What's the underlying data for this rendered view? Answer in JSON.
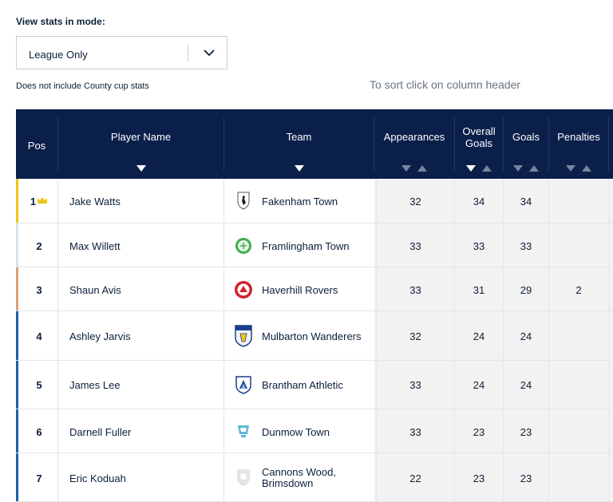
{
  "mode": {
    "label": "View stats in mode:",
    "selected": "League Only"
  },
  "note": "Does not include County cup stats",
  "sort_hint": "To sort click on column header",
  "columns": {
    "pos": "Pos",
    "player": "Player Name",
    "team": "Team",
    "appearances": "Appearances",
    "overall_goals": "Overall Goals",
    "goals": "Goals",
    "penalties": "Penalties"
  },
  "colors": {
    "header_bg": "#0b1f4b",
    "gold": "#f0c419",
    "silver": "#d6e4ee",
    "bronze": "#d9a17a",
    "blue": "#1a5fa8"
  },
  "rows": [
    {
      "pos": "1",
      "player": "Jake Watts",
      "team": "Fakenham Town",
      "appearances": "32",
      "overall_goals": "34",
      "goals": "34",
      "penalties": "",
      "crest": "fakenham-crest-icon"
    },
    {
      "pos": "2",
      "player": "Max Willett",
      "team": "Framlingham Town",
      "appearances": "33",
      "overall_goals": "33",
      "goals": "33",
      "penalties": "",
      "crest": "framlingham-crest-icon"
    },
    {
      "pos": "3",
      "player": "Shaun Avis",
      "team": "Haverhill Rovers",
      "appearances": "33",
      "overall_goals": "31",
      "goals": "29",
      "penalties": "2",
      "crest": "haverhill-crest-icon"
    },
    {
      "pos": "4",
      "player": "Ashley Jarvis",
      "team": "Mulbarton Wanderers",
      "appearances": "32",
      "overall_goals": "24",
      "goals": "24",
      "penalties": "",
      "crest": "mulbarton-crest-icon"
    },
    {
      "pos": "5",
      "player": "James Lee",
      "team": "Brantham Athletic",
      "appearances": "33",
      "overall_goals": "24",
      "goals": "24",
      "penalties": "",
      "crest": "brantham-crest-icon"
    },
    {
      "pos": "6",
      "player": "Darnell Fuller",
      "team": "Dunmow Town",
      "appearances": "33",
      "overall_goals": "23",
      "goals": "23",
      "penalties": "",
      "crest": "dunmow-crest-icon"
    },
    {
      "pos": "7",
      "player": "Eric Koduah",
      "team_line1": "Cannons Wood,",
      "team_line2": "Brimsdown",
      "appearances": "22",
      "overall_goals": "23",
      "goals": "23",
      "penalties": "",
      "crest": "cannons-wood-crest-icon"
    }
  ]
}
